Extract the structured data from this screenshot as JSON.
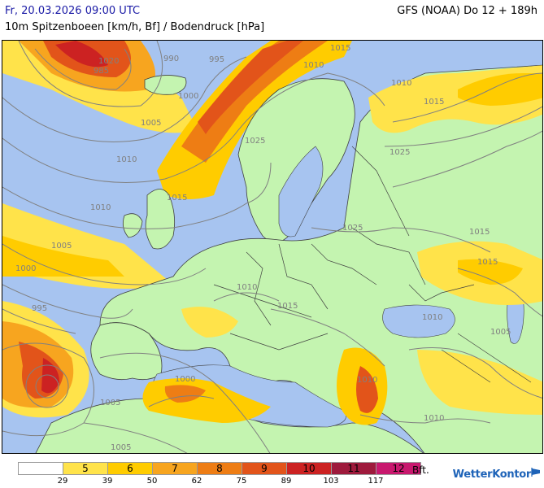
{
  "header": {
    "valid_time": "Fr, 20.03.2026 09:00 UTC",
    "model_run": "GFS (NOAA) Do 12 + 189h",
    "parameter": "10m Spitzenboeen [km/h, Bf] / Bodendruck [hPa]"
  },
  "colors": {
    "sea": "#a7c4f0",
    "land_calm": "#c4f4b0",
    "bf5": "#ffe34a",
    "bf6": "#ffcc00",
    "bf7": "#f7a51f",
    "bf8": "#ee7d14",
    "bf9": "#e2541a",
    "bf10": "#cc2222",
    "bf11": "#9e1a3c",
    "bf12": "#c8186e",
    "isobar": "#808080",
    "border": "#404040"
  },
  "legend": {
    "beaufort": [
      "",
      "5",
      "6",
      "7",
      "8",
      "9",
      "10",
      "11",
      "12"
    ],
    "unit": "Bft.",
    "kmh_thresholds": [
      "29",
      "39",
      "50",
      "62",
      "75",
      "89",
      "103",
      "117"
    ]
  },
  "isobar_labels": [
    "1020",
    "985",
    "990",
    "995",
    "1015",
    "1010",
    "1000",
    "1005",
    "1010",
    "1015",
    "1025",
    "1010",
    "1015",
    "1025",
    "1010",
    "1005",
    "1025",
    "1015",
    "1000",
    "995",
    "1010",
    "1015",
    "1010",
    "1005",
    "1000",
    "1005",
    "1005",
    "1010",
    "1010",
    "1015"
  ],
  "brand": "WetterKontor"
}
